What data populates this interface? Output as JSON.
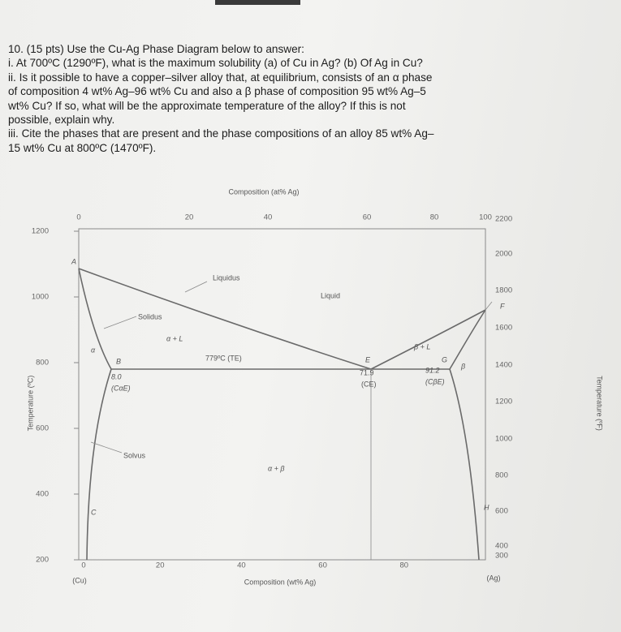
{
  "question": {
    "lines": [
      "10. (15 pts) Use the Cu-Ag Phase Diagram below to answer:",
      "i. At 700ºC (1290ºF), what is the maximum solubility (a) of Cu in Ag? (b) Of Ag in Cu?",
      "ii. Is it possible to have a copper–silver alloy that, at equilibrium, consists of an α phase",
      "of composition 4 wt% Ag–96 wt% Cu and also a β phase of composition 95 wt% Ag–5",
      "wt% Cu? If so, what will be the approximate temperature of the alloy? If this is not",
      "possible, explain why.",
      "iii. Cite the phases that are present and the phase compositions of an alloy 85 wt% Ag–",
      "15 wt% Cu at 800ºC (1470ºF)."
    ]
  },
  "diagram": {
    "top_axis_label": "Composition (at% Ag)",
    "bottom_axis_label": "Composition (wt% Ag)",
    "left_axis_label": "Temperature (ºC)",
    "right_axis_label": "Temperature (ºF)",
    "left_end_label": "(Cu)",
    "right_end_label": "(Ag)",
    "top_ticks": [
      0,
      20,
      40,
      60,
      80,
      100
    ],
    "bottom_ticks": [
      0,
      20,
      40,
      60,
      80
    ],
    "left_ticks": [
      1200,
      1000,
      800,
      600,
      400,
      200
    ],
    "right_ticks": [
      2200,
      2000,
      1800,
      1600,
      1400,
      1200,
      1000,
      800,
      600,
      400,
      300
    ],
    "labels": {
      "liquidus": "Liquidus",
      "liquid": "Liquid",
      "solidus": "Solidus",
      "alpha_l": "α + L",
      "beta_l": "β + L",
      "eutectic_temp": "779ºC (TE)",
      "alpha": "α",
      "beta": "β",
      "c_alpha": "8.0",
      "c_alpha_sym": "(CαE)",
      "c_e": "71.9",
      "c_e_sym": "(CE)",
      "c_beta": "91.2",
      "c_beta_sym": "(CβE)",
      "solvus": "Solvus",
      "alpha_beta": "α + β",
      "point_a": "A",
      "point_b": "B",
      "point_c": "C",
      "point_e": "E",
      "point_f": "F",
      "point_g": "G",
      "point_h": "H"
    }
  }
}
